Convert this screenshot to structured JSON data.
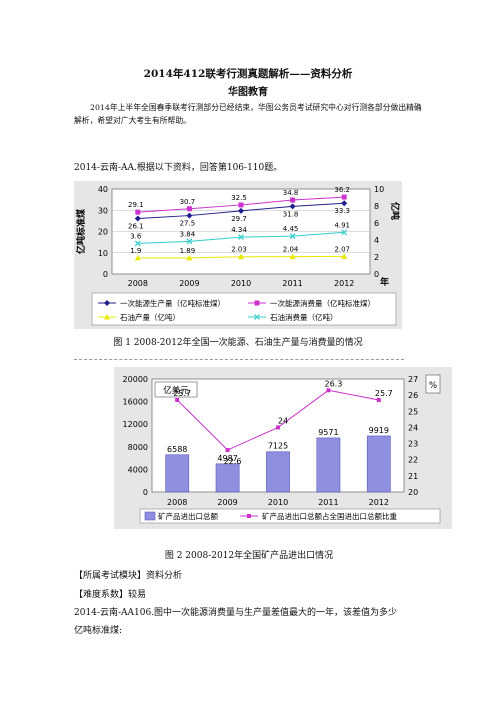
{
  "doc": {
    "title": "2014年412联考行测真题解析——资料分析",
    "org": "华图教育",
    "intro": "2014年上半年全国春季联考行测部分已经结束，华图公务员考试研究中心对行测各部分做出精确解析，希望对广大考生有所帮助。",
    "question_intro": "2014-云南-AA.根据以下资料，回答第106-110题。",
    "caption1": "图 1      2008-2012年全国一次能源、石油生产量与消费量的情况",
    "caption2": "图 2 2008-2012年全国矿产品进出口情况",
    "module": "【所属考试模块】资料分析",
    "difficulty": "【难度系数】较易",
    "q106_line1": "2014-云南-AA106.图中一次能源消费量与生产量差值最大的一年，该差值为多少",
    "q106_line2": "亿吨标准煤:"
  },
  "chart_data": [
    {
      "type": "line",
      "x": [
        "2008",
        "2009",
        "2010",
        "2011",
        "2012"
      ],
      "ylabel": "亿吨标准煤",
      "y2label": "亿吨",
      "xunit": "年",
      "ylim": [
        0,
        40
      ],
      "y2lim": [
        0,
        10
      ],
      "yticks": [
        "0",
        "10",
        "20",
        "30",
        "40"
      ],
      "y2ticks": [
        "0",
        "2",
        "4",
        "6",
        "8",
        "10"
      ],
      "series": [
        {
          "name": "一次能源生产量（亿吨标准煤）",
          "axis": "left",
          "color": "#1f1f8c",
          "marker": "diamond",
          "values": [
            26.1,
            27.5,
            29.7,
            31.8,
            33.3
          ],
          "labels": [
            "26.1",
            "27.5",
            "29.7",
            "31.8",
            "33.3"
          ]
        },
        {
          "name": "一次能源消费量（亿吨标准煤）",
          "axis": "left",
          "color": "#cc33cc",
          "marker": "square",
          "values": [
            29.1,
            30.7,
            32.5,
            34.8,
            36.2
          ],
          "labels": [
            "29.1",
            "30.7",
            "32.5",
            "34.8",
            "36.2"
          ]
        },
        {
          "name": "石油产量（亿吨）",
          "axis": "right",
          "color": "#e8e800",
          "marker": "triangle",
          "values": [
            1.9,
            1.89,
            2.03,
            2.04,
            2.07
          ],
          "labels": [
            "1.9",
            "1.89",
            "2.03",
            "2.04",
            "2.07"
          ]
        },
        {
          "name": "石油消费量（亿吨）",
          "axis": "right",
          "color": "#33cccc",
          "marker": "cross",
          "values": [
            3.6,
            3.84,
            4.34,
            4.45,
            4.91
          ],
          "labels": [
            "3.6",
            "3.84",
            "4.34",
            "4.45",
            "4.91"
          ]
        }
      ],
      "grid": true,
      "legend": "bottom"
    },
    {
      "type": "bar",
      "categories": [
        "2008",
        "2009",
        "2010",
        "2011",
        "2012"
      ],
      "ylabel": "亿美元",
      "y2label": "%",
      "ylim": [
        0,
        20000
      ],
      "y2lim": [
        20,
        27
      ],
      "yticks": [
        "0",
        "4000",
        "8000",
        "12000",
        "16000",
        "20000"
      ],
      "y2ticks": [
        "20",
        "21",
        "22",
        "23",
        "24",
        "25",
        "26",
        "27"
      ],
      "series": [
        {
          "name": "矿产品进出口总额",
          "axis": "left",
          "color": "#8f8fe0",
          "values": [
            6588,
            4987,
            7125,
            9571,
            9919
          ],
          "labels": [
            "6588",
            "4987",
            "7125",
            "9571",
            "9919"
          ]
        },
        {
          "name": "矿产品进出口总额占全国进出口总额比重",
          "axis": "right",
          "type": "line",
          "color": "#cc33cc",
          "values": [
            25.7,
            22.6,
            24,
            26.3,
            25.7
          ],
          "labels": [
            "25.7",
            "22.6",
            "24",
            "26.3",
            "25.7"
          ]
        }
      ],
      "grid": true,
      "legend": "bottom"
    }
  ]
}
